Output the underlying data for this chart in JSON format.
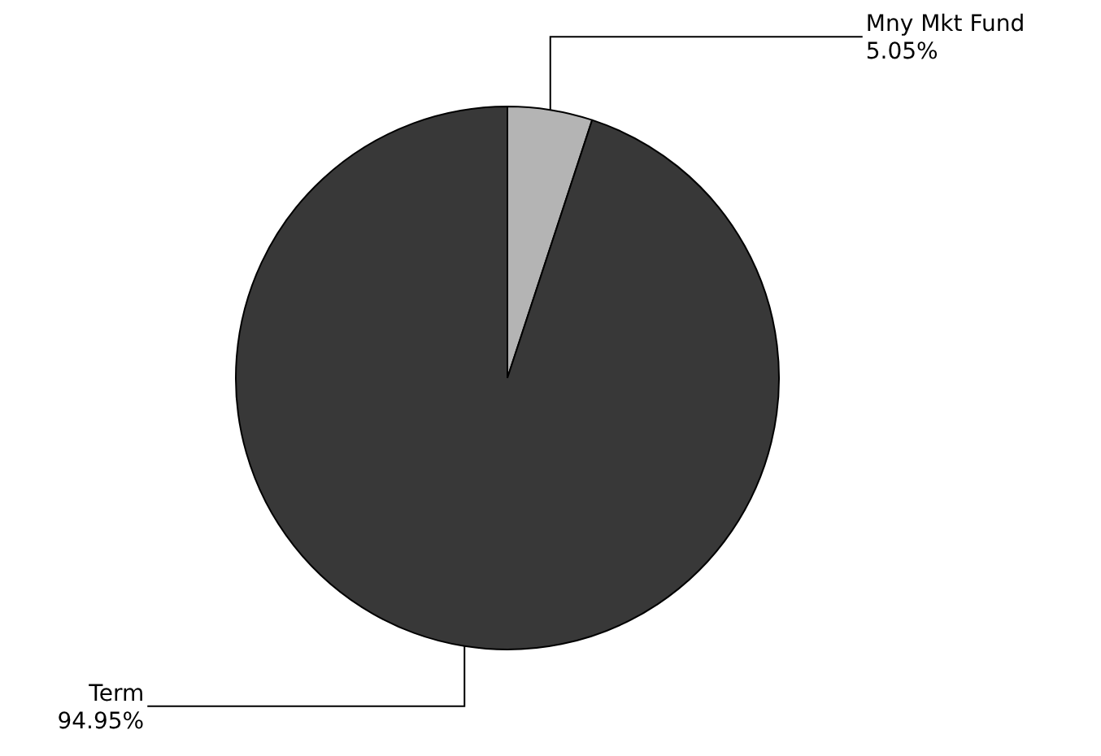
{
  "chart_data": {
    "type": "pie",
    "categories": [
      "Mny Mkt Fund",
      "Term"
    ],
    "values": [
      5.05,
      94.95
    ],
    "value_labels": [
      "5.05%",
      "94.95%"
    ],
    "colors": [
      "#b4b4b4",
      "#383838"
    ],
    "legend": false
  }
}
